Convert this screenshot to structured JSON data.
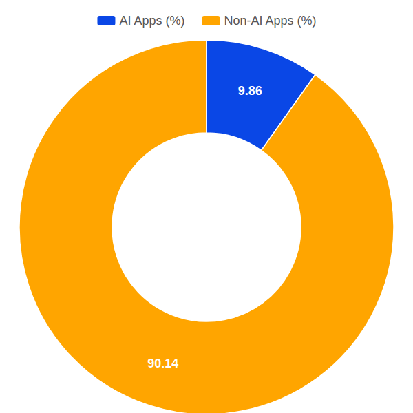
{
  "chart_data": {
    "type": "pie",
    "categories": [
      "AI Apps (%)",
      "Non-AI Apps (%)"
    ],
    "values": [
      9.86,
      90.14
    ],
    "colors": [
      "#0a47e6",
      "#ffa500"
    ],
    "legend": "top",
    "data_labels": true
  }
}
